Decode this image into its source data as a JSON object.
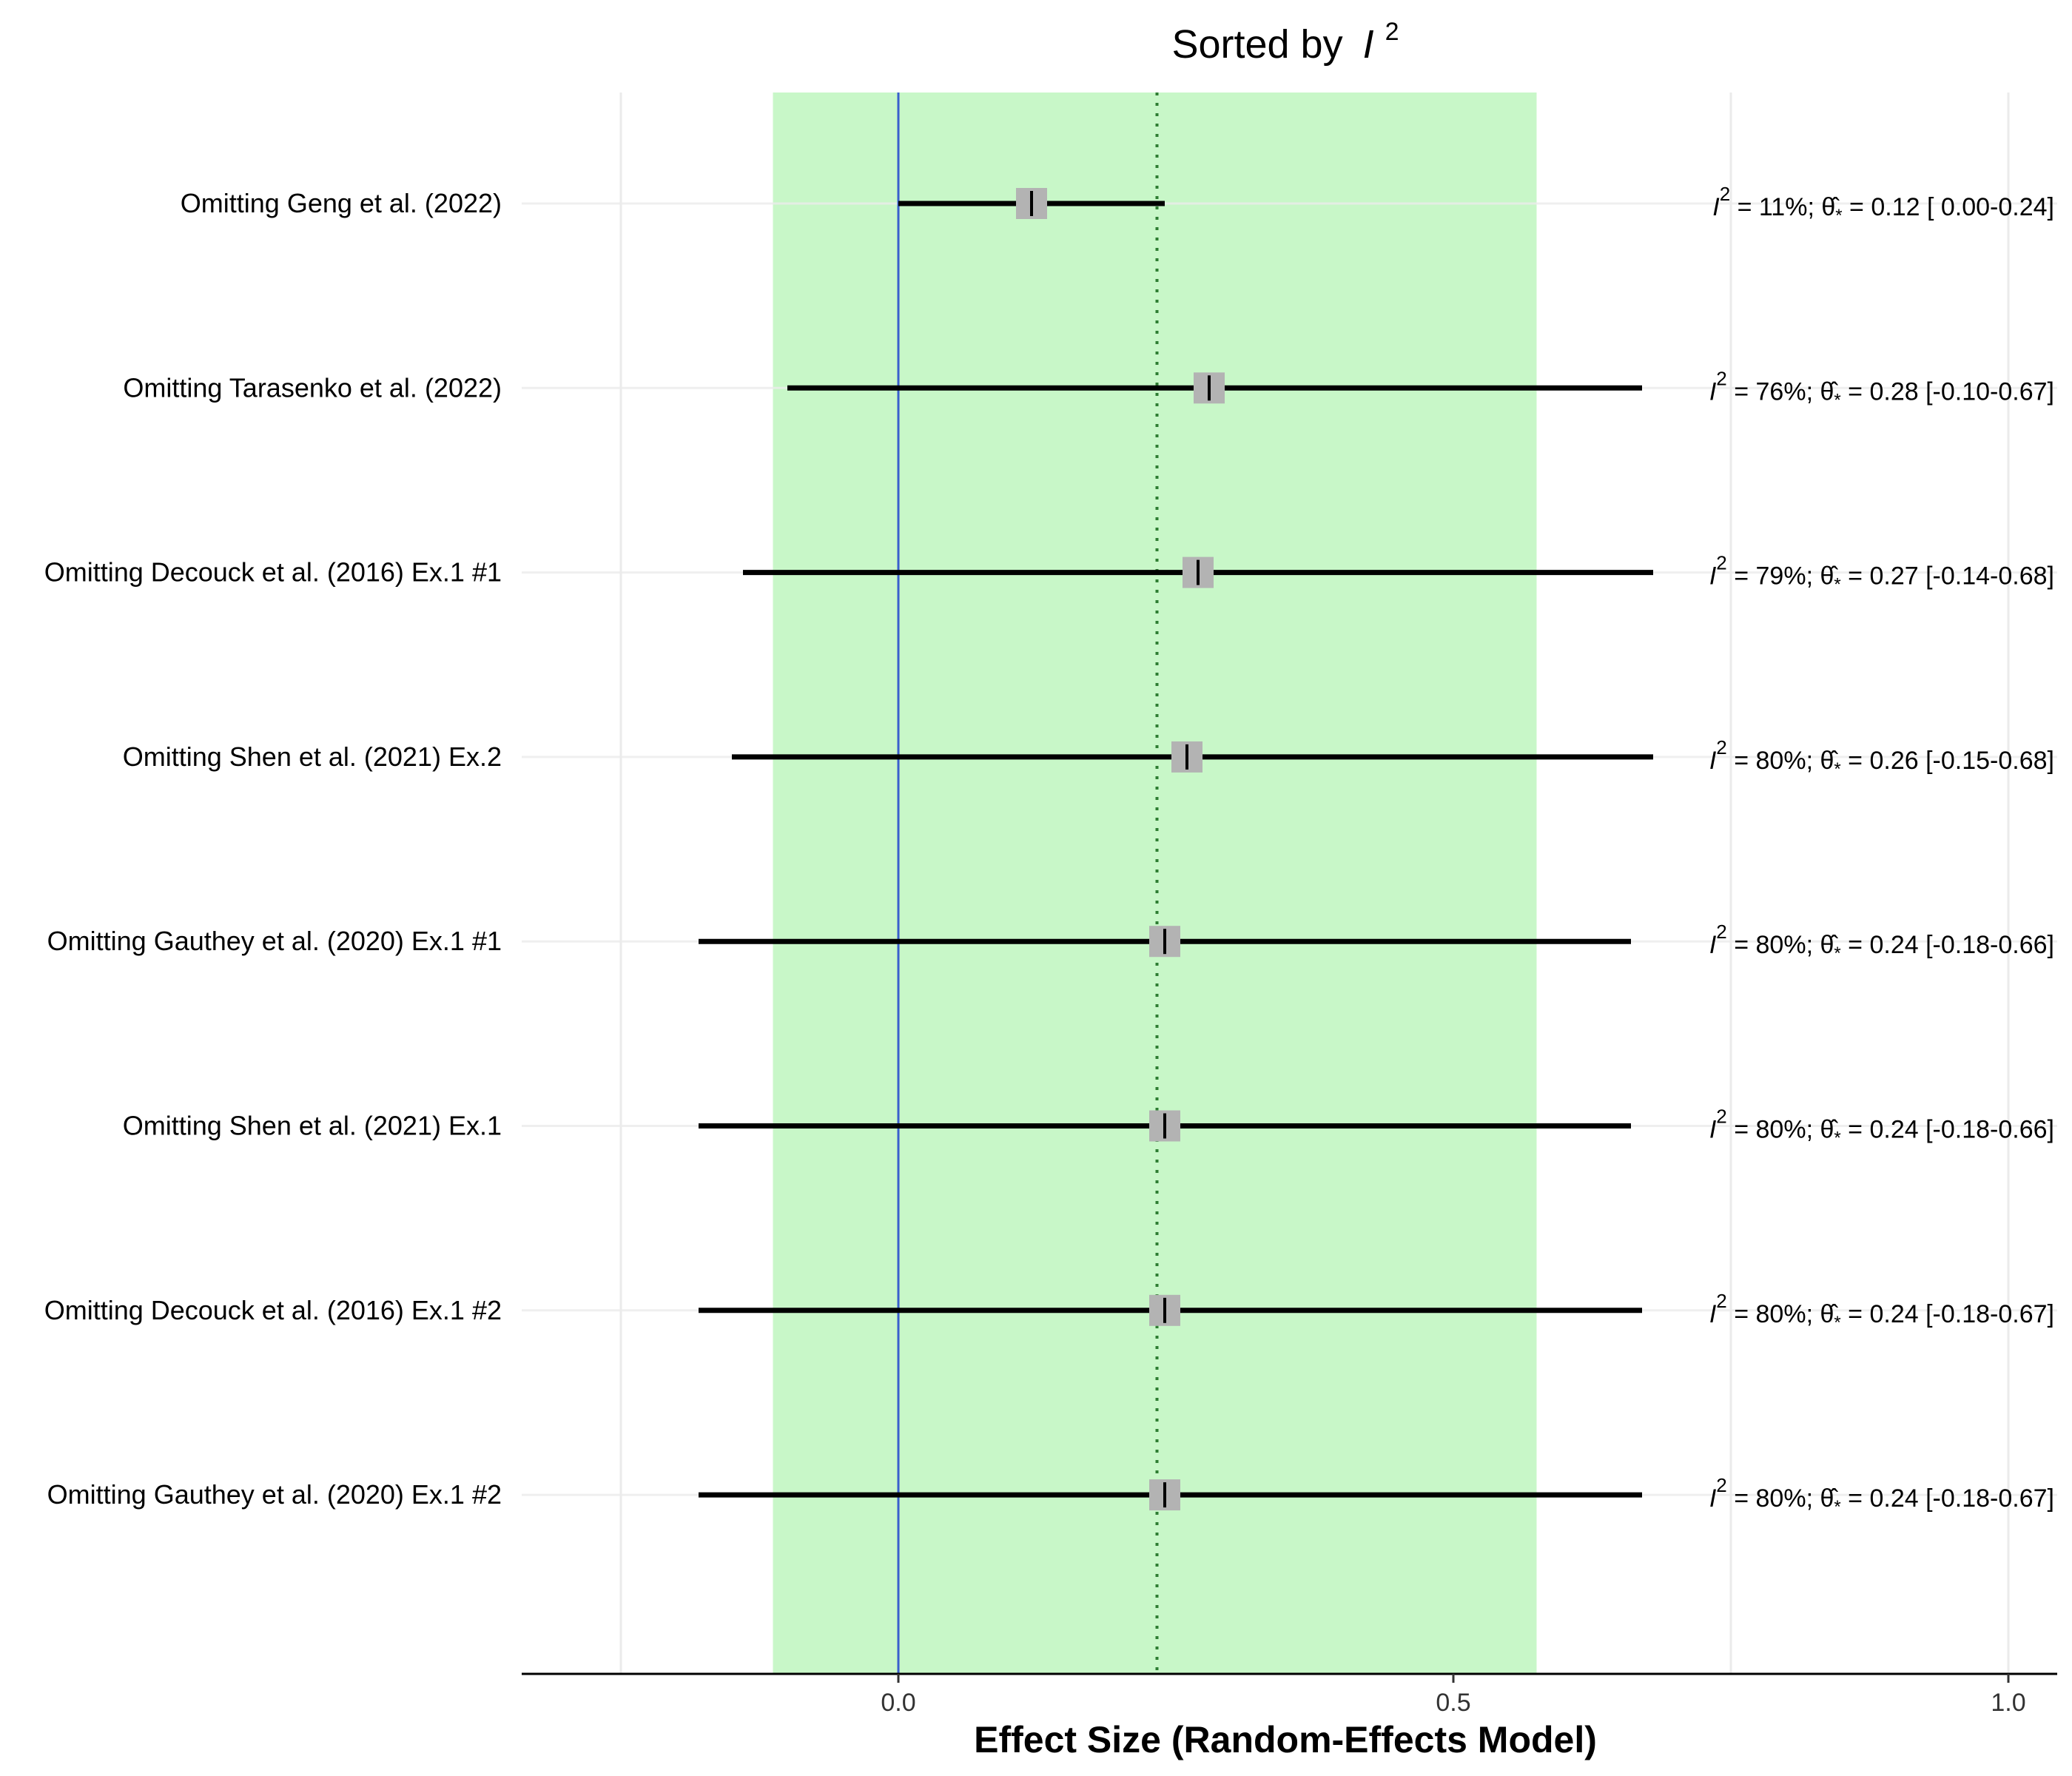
{
  "chart_data": {
    "type": "forest",
    "title": "Sorted by",
    "title_symbol": "I",
    "title_superscript": "2",
    "xlabel": "Effect Size (Random-Effects Model)",
    "xlim": [
      -0.34,
      1.04
    ],
    "xticks": [
      0.0,
      0.5,
      1.0
    ],
    "xtick_labels": [
      "0.0",
      "0.5",
      "1.0"
    ],
    "minor_gridlines": [
      -0.25,
      0.25,
      0.75
    ],
    "reference_line": 0.0,
    "pooled_estimate_line": 0.233,
    "prediction_band": [
      -0.113,
      0.575
    ],
    "stat_label_symbol": "I",
    "stat_label_superscript": "2",
    "theta_symbol": "θ̂",
    "theta_subscript": "*",
    "colors": {
      "band": "#c8f7c8",
      "reference_line": "#3a5fcd",
      "pooled_line": "#2e7d32",
      "ci_line": "#000000",
      "point_box": "#b3b3b3",
      "grid": "#ebebeb"
    },
    "studies": [
      {
        "label": "Omitting Geng et al. (2022)",
        "i2": "11%",
        "estimate": 0.12,
        "lower": 0.0,
        "upper": 0.24,
        "stat_text": " = 11%; ",
        "est_text": " = 0.12 [ 0.00-0.24]"
      },
      {
        "label": "Omitting Tarasenko et al. (2022)",
        "i2": "76%",
        "estimate": 0.28,
        "lower": -0.1,
        "upper": 0.67,
        "stat_text": " = 76%; ",
        "est_text": " = 0.28 [-0.10-0.67]"
      },
      {
        "label": "Omitting Decouck et al. (2016) Ex.1 #1",
        "i2": "79%",
        "estimate": 0.27,
        "lower": -0.14,
        "upper": 0.68,
        "stat_text": " = 79%; ",
        "est_text": " = 0.27 [-0.14-0.68]"
      },
      {
        "label": "Omitting Shen et al. (2021) Ex.2",
        "i2": "80%",
        "estimate": 0.26,
        "lower": -0.15,
        "upper": 0.68,
        "stat_text": " = 80%; ",
        "est_text": " = 0.26 [-0.15-0.68]"
      },
      {
        "label": "Omitting Gauthey et al. (2020) Ex.1 #1",
        "i2": "80%",
        "estimate": 0.24,
        "lower": -0.18,
        "upper": 0.66,
        "stat_text": " = 80%; ",
        "est_text": " = 0.24 [-0.18-0.66]"
      },
      {
        "label": "Omitting Shen et al. (2021) Ex.1",
        "i2": "80%",
        "estimate": 0.24,
        "lower": -0.18,
        "upper": 0.66,
        "stat_text": " = 80%; ",
        "est_text": " = 0.24 [-0.18-0.66]"
      },
      {
        "label": "Omitting Decouck et al. (2016) Ex.1 #2",
        "i2": "80%",
        "estimate": 0.24,
        "lower": -0.18,
        "upper": 0.67,
        "stat_text": " = 80%; ",
        "est_text": " = 0.24 [-0.18-0.67]"
      },
      {
        "label": "Omitting Gauthey et al. (2020) Ex.1 #2",
        "i2": "80%",
        "estimate": 0.24,
        "lower": -0.18,
        "upper": 0.67,
        "stat_text": " = 80%; ",
        "est_text": " = 0.24 [-0.18-0.67]"
      }
    ]
  }
}
